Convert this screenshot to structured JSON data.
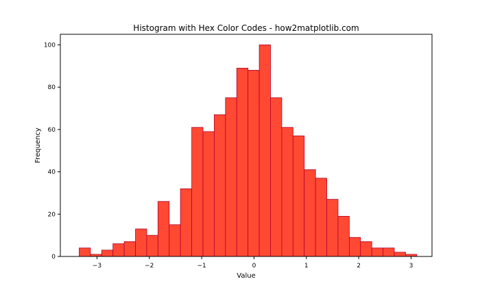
{
  "chart_data": {
    "type": "bar",
    "title": "Histogram with Hex Color Codes - how2matplotlib.com",
    "xlabel": "Value",
    "ylabel": "Frequency",
    "xlim": [
      -3.7,
      3.4
    ],
    "ylim": [
      0,
      105
    ],
    "xticks": [
      -3,
      -2,
      -1,
      0,
      1,
      2,
      3
    ],
    "yticks": [
      0,
      20,
      40,
      60,
      80,
      100
    ],
    "bin_start": -3.34,
    "bin_width": 0.215,
    "values": [
      4,
      1,
      3,
      6,
      7,
      13,
      10,
      26,
      15,
      32,
      61,
      59,
      67,
      75,
      89,
      88,
      100,
      75,
      61,
      57,
      41,
      37,
      27,
      19,
      9,
      7,
      4,
      4,
      2,
      1
    ],
    "fill_color": "#ff4933",
    "edge_color": "#b0002a",
    "grid": false,
    "legend": "none"
  }
}
